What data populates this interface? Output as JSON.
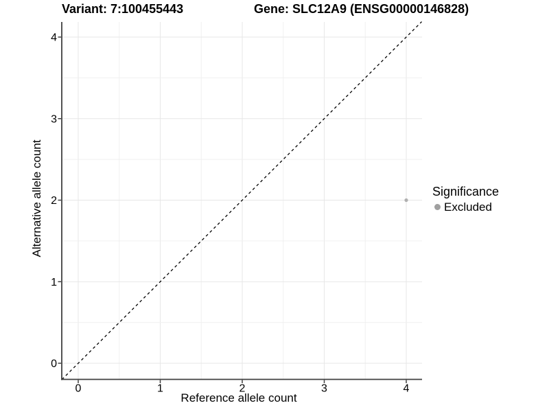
{
  "title": {
    "variant": "Variant: 7:100455443",
    "gene": "Gene: SLC12A9 (ENSG00000146828)"
  },
  "chart_data": {
    "type": "scatter",
    "title_left": "Variant: 7:100455443",
    "title_right": "Gene: SLC12A9 (ENSG00000146828)",
    "xlabel": "Reference allele count",
    "ylabel": "Alternative allele count",
    "xlim": [
      -0.2,
      4.2
    ],
    "ylim": [
      -0.2,
      4.2
    ],
    "xticks": [
      0,
      1,
      2,
      3,
      4
    ],
    "yticks": [
      0,
      1,
      2,
      3,
      4
    ],
    "grid": true,
    "minor_grid_step": 0.5,
    "points": [
      {
        "x": 4,
        "y": 2,
        "series": "Excluded"
      }
    ],
    "series": [
      {
        "name": "Excluded",
        "color": "#b0b0b0"
      }
    ],
    "identity_line": {
      "label": "y = x",
      "style": "dashed",
      "color": "#000000"
    },
    "legend_position": "right"
  },
  "legend": {
    "title": "Significance",
    "items": [
      {
        "label": "Excluded",
        "color": "#a0a0a0"
      }
    ]
  },
  "colors": {
    "background": "#ffffff",
    "grid_major": "#e7e7e7",
    "grid_minor": "#f0f0f0",
    "axis_line": "#3f3f3f",
    "tick_mark": "#404040",
    "text": "#000000"
  }
}
